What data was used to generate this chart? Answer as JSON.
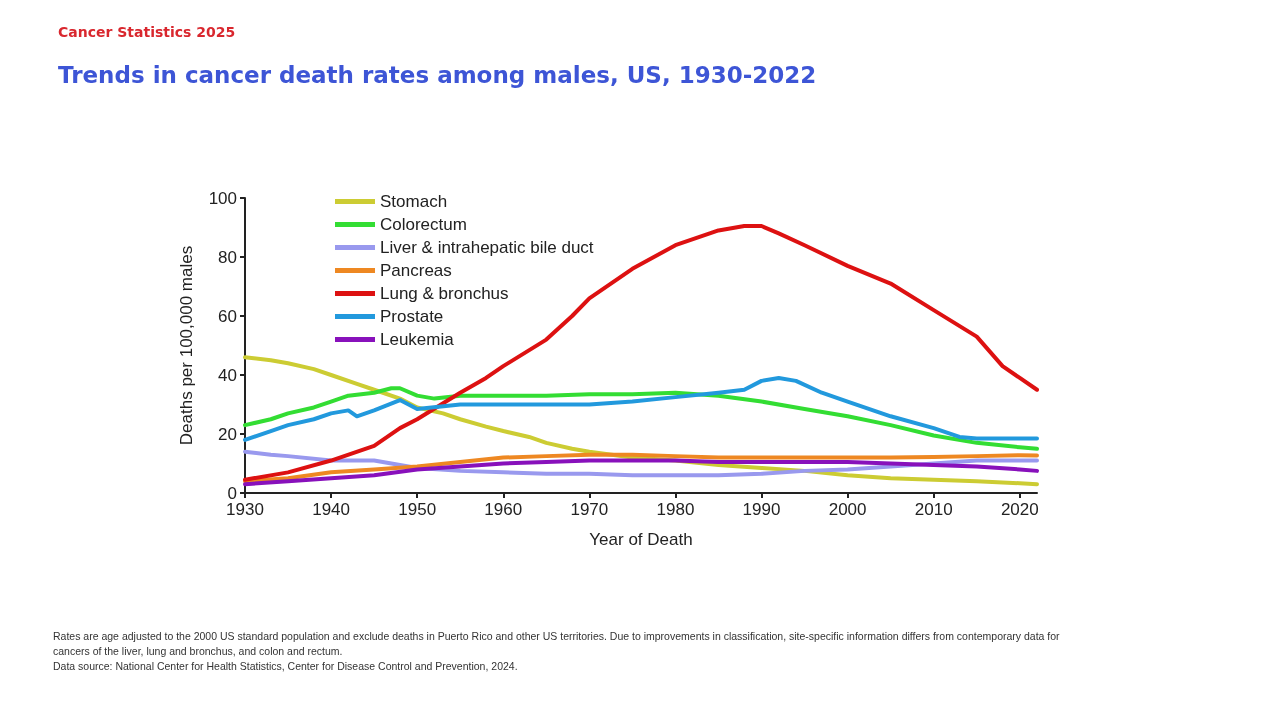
{
  "chart_data": {
    "type": "line",
    "subtitle": "Cancer Statistics 2025",
    "title": "Trends in cancer death rates among males, US, 1930-2022",
    "xlabel": "Year of Death",
    "ylabel": "Deaths per 100,000 males",
    "xlim": [
      1930,
      2022
    ],
    "xticks": [
      1930,
      1940,
      1950,
      1960,
      1970,
      1980,
      1990,
      2000,
      2010,
      2020
    ],
    "ylim": [
      0,
      100
    ],
    "yticks": [
      0,
      20,
      40,
      60,
      80,
      100
    ],
    "grid": false,
    "legend": "top left",
    "marker": "none",
    "line_style": "solid",
    "series": [
      {
        "name": "Stomach",
        "color": "#cccc33",
        "x": [
          1930,
          1933,
          1935,
          1938,
          1940,
          1943,
          1945,
          1948,
          1950,
          1953,
          1955,
          1958,
          1960,
          1963,
          1965,
          1968,
          1970,
          1975,
          1980,
          1985,
          1990,
          1995,
          2000,
          2005,
          2010,
          2015,
          2020,
          2022
        ],
        "values": [
          46,
          45,
          44,
          42,
          40,
          37,
          35,
          32,
          29,
          27,
          25,
          22.5,
          21,
          19,
          17,
          15,
          14,
          12,
          11,
          9.5,
          8.5,
          7.5,
          6,
          5,
          4.5,
          4,
          3.3,
          3
        ]
      },
      {
        "name": "Colorectum",
        "color": "#33dd33",
        "x": [
          1930,
          1933,
          1935,
          1938,
          1940,
          1942,
          1945,
          1947,
          1948,
          1950,
          1952,
          1955,
          1960,
          1965,
          1970,
          1975,
          1980,
          1985,
          1990,
          1995,
          2000,
          2005,
          2010,
          2015,
          2020,
          2022
        ],
        "values": [
          23,
          25,
          27,
          29,
          31,
          33,
          34,
          35.5,
          35.5,
          33,
          32,
          33,
          33,
          33,
          33.5,
          33.5,
          34,
          33,
          31,
          28.5,
          26,
          23,
          19.5,
          17,
          15.5,
          15
        ]
      },
      {
        "name": "Liver & intrahepatic bile duct",
        "color": "#9999ee",
        "x": [
          1930,
          1933,
          1935,
          1940,
          1945,
          1947,
          1950,
          1955,
          1960,
          1965,
          1970,
          1975,
          1980,
          1985,
          1990,
          1995,
          2000,
          2005,
          2010,
          2015,
          2020,
          2022
        ],
        "values": [
          14,
          13,
          12.5,
          11,
          11,
          10,
          8.5,
          7.5,
          7,
          6.5,
          6.5,
          6,
          6,
          6,
          6.5,
          7.5,
          8,
          9,
          10,
          11,
          11,
          11
        ]
      },
      {
        "name": "Pancreas",
        "color": "#ee8822",
        "x": [
          1930,
          1935,
          1940,
          1945,
          1950,
          1955,
          1960,
          1965,
          1970,
          1975,
          1980,
          1985,
          1990,
          1995,
          2000,
          2005,
          2010,
          2015,
          2020,
          2022
        ],
        "values": [
          4,
          5,
          7,
          8,
          9,
          10.5,
          12,
          12.5,
          13,
          13,
          12.5,
          12,
          12,
          12,
          12,
          12,
          12.2,
          12.5,
          12.8,
          12.7
        ]
      },
      {
        "name": "Lung & bronchus",
        "color": "#dd1111",
        "x": [
          1930,
          1935,
          1940,
          1945,
          1948,
          1950,
          1955,
          1958,
          1960,
          1965,
          1968,
          1970,
          1975,
          1980,
          1985,
          1988,
          1990,
          1992,
          1995,
          2000,
          2005,
          2010,
          2015,
          2018,
          2020,
          2022
        ],
        "values": [
          4.5,
          7,
          11,
          16,
          22,
          25,
          34,
          39,
          43,
          52,
          60,
          66,
          76,
          84,
          89,
          90.5,
          90.5,
          88,
          84,
          77,
          71,
          62,
          53,
          43,
          39,
          35
        ]
      },
      {
        "name": "Prostate",
        "color": "#2299dd",
        "x": [
          1930,
          1933,
          1935,
          1938,
          1940,
          1942,
          1943,
          1945,
          1948,
          1950,
          1955,
          1960,
          1965,
          1970,
          1975,
          1980,
          1985,
          1988,
          1990,
          1992,
          1994,
          1997,
          2000,
          2005,
          2010,
          2013,
          2015,
          2020,
          2022
        ],
        "values": [
          18,
          21,
          23,
          25,
          27,
          28,
          26,
          28,
          31.5,
          28.5,
          30,
          30,
          30,
          30,
          31,
          32.5,
          34,
          35,
          38,
          39,
          38,
          34,
          31,
          26,
          22,
          19,
          18.5,
          18.5,
          18.5
        ]
      },
      {
        "name": "Leukemia",
        "color": "#8811bb",
        "x": [
          1930,
          1935,
          1940,
          1945,
          1950,
          1955,
          1960,
          1965,
          1970,
          1975,
          1980,
          1985,
          1990,
          1995,
          2000,
          2005,
          2010,
          2015,
          2020,
          2022
        ],
        "values": [
          3,
          4,
          5,
          6,
          8,
          9,
          10,
          10.5,
          11,
          11,
          11,
          10.5,
          10.5,
          10.5,
          10.5,
          10,
          9.5,
          9,
          8,
          7.5
        ]
      }
    ],
    "annotations": [
      "Rates are age adjusted to the 2000 US standard population and exclude deaths in Puerto Rico and other US territories. Due to improvements in classification, site-specific information differs from contemporary data for cancers of the liver, lung and bronchus, and colon and rectum.",
      "Data source: National Center for Health Statistics, Center for Disease Control and Prevention, 2024."
    ]
  }
}
